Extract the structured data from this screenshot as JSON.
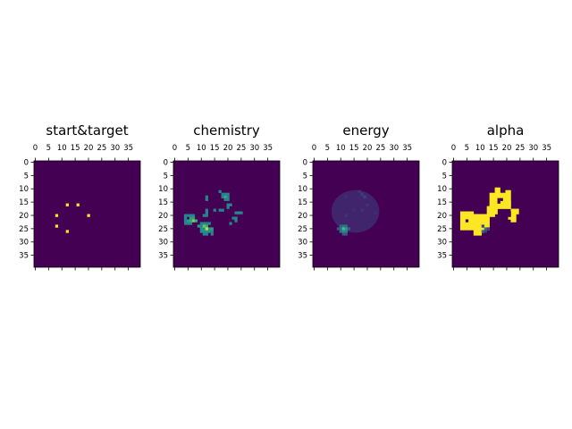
{
  "chart_data": [
    {
      "type": "heatmap",
      "title": "start&target",
      "grid_size": [
        40,
        40
      ],
      "colormap": "viridis",
      "vmin": 0,
      "vmax": 1,
      "x_ticks": [
        "0",
        "5",
        "10",
        "15",
        "20",
        "25",
        "30",
        "35"
      ],
      "y_ticks": [
        "0",
        "5",
        "10",
        "15",
        "20",
        "25",
        "30",
        "35"
      ],
      "x_tick_position": "top",
      "background": 0,
      "cells": [
        [
          12,
          16,
          1
        ],
        [
          16,
          16,
          1
        ],
        [
          8,
          20,
          1
        ],
        [
          20,
          20,
          1
        ],
        [
          8,
          24,
          1
        ],
        [
          12,
          26,
          1
        ]
      ]
    },
    {
      "type": "heatmap",
      "title": "chemistry",
      "grid_size": [
        40,
        40
      ],
      "colormap": "viridis",
      "vmin": 0,
      "vmax": 1,
      "x_ticks": [
        "0",
        "5",
        "10",
        "15",
        "20",
        "25",
        "30",
        "35"
      ],
      "y_ticks": [
        "0",
        "5",
        "10",
        "15",
        "20",
        "25",
        "30",
        "35"
      ],
      "x_tick_position": "top",
      "background": 0,
      "cells": [
        [
          17,
          11,
          0.45
        ],
        [
          18,
          12,
          0.45
        ],
        [
          19,
          12,
          0.45
        ],
        [
          20,
          12,
          0.45
        ],
        [
          18,
          13,
          0.45
        ],
        [
          20,
          13,
          0.45
        ],
        [
          19,
          14,
          0.45
        ],
        [
          20,
          14,
          0.45
        ],
        [
          19,
          13,
          0.6
        ],
        [
          12,
          13,
          0.45
        ],
        [
          12,
          14,
          0.45
        ],
        [
          20,
          16,
          0.45
        ],
        [
          21,
          16,
          0.45
        ],
        [
          20,
          17,
          0.45
        ],
        [
          12,
          18,
          0.45
        ],
        [
          15,
          18,
          0.45
        ],
        [
          17,
          18,
          0.45
        ],
        [
          18,
          18,
          0.45
        ],
        [
          23,
          19,
          0.45
        ],
        [
          24,
          19,
          0.45
        ],
        [
          25,
          19,
          0.45
        ],
        [
          12,
          19,
          0.45
        ],
        [
          11,
          20,
          0.45
        ],
        [
          12,
          20,
          0.45
        ],
        [
          22,
          21,
          0.45
        ],
        [
          23,
          21,
          0.45
        ],
        [
          23,
          22,
          0.45
        ],
        [
          21,
          23,
          0.45
        ],
        [
          4,
          20,
          0.45
        ],
        [
          5,
          20,
          0.45
        ],
        [
          6,
          20,
          0.45
        ],
        [
          7,
          20,
          0.45
        ],
        [
          4,
          21,
          0.45
        ],
        [
          4,
          22,
          0.45
        ],
        [
          4,
          23,
          0.45
        ],
        [
          5,
          23,
          0.45
        ],
        [
          6,
          23,
          0.45
        ],
        [
          6,
          21,
          0.55
        ],
        [
          7,
          21,
          0.55
        ],
        [
          7,
          22,
          0.8
        ],
        [
          8,
          22,
          0.6
        ],
        [
          5,
          22,
          0.55
        ],
        [
          6,
          22,
          0.6
        ],
        [
          9,
          24,
          0.55
        ],
        [
          10,
          24,
          0.45
        ],
        [
          10,
          23,
          0.45
        ],
        [
          11,
          23,
          0.45
        ],
        [
          12,
          23,
          0.45
        ],
        [
          13,
          23,
          0.45
        ],
        [
          10,
          25,
          0.5
        ],
        [
          11,
          25,
          0.5
        ],
        [
          13,
          25,
          0.55
        ],
        [
          10,
          26,
          0.5
        ],
        [
          11,
          26,
          0.5
        ],
        [
          12,
          26,
          0.5
        ],
        [
          13,
          26,
          0.5
        ],
        [
          14,
          26,
          0.45
        ],
        [
          11,
          27,
          0.45
        ],
        [
          12,
          27,
          0.45
        ],
        [
          14,
          27,
          0.45
        ],
        [
          12,
          24,
          0.6
        ],
        [
          12,
          25,
          0.9
        ],
        [
          11,
          24,
          0.75
        ],
        [
          14,
          25,
          0.55
        ]
      ]
    },
    {
      "type": "heatmap",
      "title": "energy",
      "grid_size": [
        40,
        40
      ],
      "colormap": "viridis",
      "vmin": 0,
      "vmax": 1,
      "x_ticks": [
        "0",
        "5",
        "10",
        "15",
        "20",
        "25",
        "30",
        "35"
      ],
      "y_ticks": [
        "0",
        "5",
        "10",
        "15",
        "20",
        "25",
        "30",
        "35"
      ],
      "x_tick_position": "top",
      "background": 0,
      "blob": {
        "cx": 16,
        "cy": 19,
        "rx": 9,
        "ry": 8,
        "value": 0.11
      },
      "cells": [
        [
          17,
          11,
          0.16
        ],
        [
          18,
          12,
          0.18
        ],
        [
          19,
          13,
          0.2
        ],
        [
          12,
          13,
          0.14
        ],
        [
          20,
          16,
          0.15
        ],
        [
          15,
          18,
          0.14
        ],
        [
          18,
          18,
          0.15
        ],
        [
          23,
          19,
          0.14
        ],
        [
          12,
          20,
          0.16
        ],
        [
          10,
          24,
          0.3
        ],
        [
          11,
          24,
          0.4
        ],
        [
          12,
          24,
          0.35
        ],
        [
          10,
          25,
          0.4
        ],
        [
          11,
          25,
          0.7
        ],
        [
          12,
          25,
          0.55
        ],
        [
          13,
          25,
          0.3
        ],
        [
          10,
          26,
          0.35
        ],
        [
          11,
          26,
          0.5
        ],
        [
          12,
          26,
          0.45
        ],
        [
          11,
          27,
          0.28
        ],
        [
          12,
          27,
          0.25
        ],
        [
          9,
          25,
          0.25
        ]
      ]
    },
    {
      "type": "heatmap",
      "title": "alpha",
      "grid_size": [
        40,
        40
      ],
      "colormap": "viridis",
      "vmin": 0,
      "vmax": 1,
      "x_ticks": [
        "0",
        "5",
        "10",
        "15",
        "20",
        "25",
        "30",
        "35"
      ],
      "y_ticks": [
        "0",
        "5",
        "10",
        "15",
        "20",
        "25",
        "30",
        "35"
      ],
      "x_tick_position": "top",
      "background": 0,
      "rects": [
        [
          14,
          12,
          7,
          6,
          1
        ],
        [
          16,
          10,
          2,
          2,
          1
        ],
        [
          20,
          11,
          2,
          6,
          1
        ],
        [
          21,
          15,
          1,
          3,
          1
        ],
        [
          13,
          17,
          3,
          4,
          1
        ],
        [
          15,
          18,
          2,
          2,
          1
        ],
        [
          22,
          18,
          3,
          2,
          1
        ],
        [
          21,
          20,
          3,
          2,
          1
        ],
        [
          22,
          22,
          2,
          1,
          1
        ],
        [
          3,
          19,
          5,
          7,
          1
        ],
        [
          8,
          20,
          6,
          6,
          1
        ],
        [
          8,
          26,
          3,
          2,
          1
        ],
        [
          11,
          26,
          1,
          1,
          1
        ]
      ],
      "cells": [
        [
          17,
          14,
          0
        ],
        [
          18,
          14,
          0
        ],
        [
          17,
          15,
          0
        ],
        [
          21,
          19,
          0
        ],
        [
          21,
          20,
          0
        ],
        [
          5,
          22,
          0
        ],
        [
          11,
          24,
          0.2
        ],
        [
          12,
          25,
          0.4
        ],
        [
          13,
          25,
          0.2
        ],
        [
          11,
          26,
          0.3
        ],
        [
          12,
          26,
          0.2
        ],
        [
          12,
          27,
          0
        ],
        [
          13,
          27,
          0
        ]
      ]
    }
  ]
}
